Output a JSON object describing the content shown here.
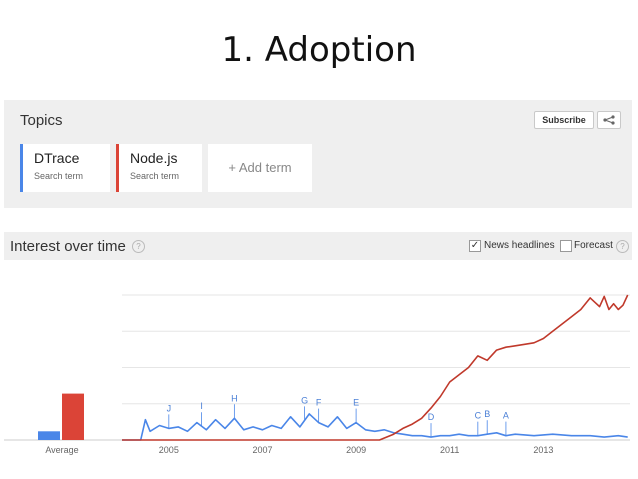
{
  "slide": {
    "title": "1. Adoption"
  },
  "topics": {
    "title": "Topics",
    "subscribe_label": "Subscribe",
    "share_icon": "share-icon",
    "terms": [
      {
        "name": "DTrace",
        "subtitle": "Search term",
        "color": "#4a86e8"
      },
      {
        "name": "Node.js",
        "subtitle": "Search term",
        "color": "#db4437"
      }
    ],
    "add_term_label": "+ Add term"
  },
  "interest": {
    "title": "Interest over time",
    "news_headlines_label": "News headlines",
    "news_headlines_checked": true,
    "forecast_label": "Forecast",
    "forecast_checked": false
  },
  "chart_data": {
    "type": "line",
    "average_label": "Average",
    "average": [
      {
        "name": "DTrace",
        "value": 6
      },
      {
        "name": "Node.js",
        "value": 32
      }
    ],
    "x_ticks": [
      "2005",
      "2007",
      "2009",
      "2011",
      "2013"
    ],
    "ylim": [
      0,
      100
    ],
    "grid": true,
    "series": [
      {
        "name": "DTrace",
        "color": "#4a86e8",
        "x": [
          2004.0,
          2004.4,
          2004.5,
          2004.6,
          2004.8,
          2005.0,
          2005.2,
          2005.4,
          2005.6,
          2005.8,
          2006.0,
          2006.2,
          2006.4,
          2006.6,
          2006.8,
          2007.0,
          2007.2,
          2007.4,
          2007.6,
          2007.8,
          2008.0,
          2008.2,
          2008.4,
          2008.6,
          2008.8,
          2009.0,
          2009.2,
          2009.4,
          2009.6,
          2009.8,
          2010.0,
          2010.2,
          2010.4,
          2010.6,
          2010.8,
          2011.0,
          2011.2,
          2011.4,
          2011.6,
          2011.8,
          2012.0,
          2012.2,
          2012.4,
          2012.8,
          2013.2,
          2013.6,
          2014.0,
          2014.3,
          2014.6,
          2014.8
        ],
        "values": [
          0,
          0,
          14,
          6,
          10,
          8,
          9,
          6,
          12,
          7,
          14,
          8,
          15,
          7,
          9,
          7,
          10,
          8,
          16,
          9,
          18,
          12,
          9,
          16,
          8,
          12,
          7,
          6,
          7,
          5,
          4,
          3,
          3,
          2,
          3,
          3,
          4,
          3,
          3,
          4,
          5,
          3,
          4,
          3,
          4,
          3,
          3,
          2,
          3,
          2
        ]
      },
      {
        "name": "Node.js",
        "color": "#c0392b",
        "x": [
          2004.0,
          2009.5,
          2009.8,
          2010.0,
          2010.2,
          2010.4,
          2010.6,
          2010.8,
          2011.0,
          2011.2,
          2011.4,
          2011.6,
          2011.8,
          2012.0,
          2012.2,
          2012.4,
          2012.6,
          2012.8,
          2013.0,
          2013.2,
          2013.4,
          2013.6,
          2013.8,
          2014.0,
          2014.1,
          2014.2,
          2014.3,
          2014.4,
          2014.5,
          2014.6,
          2014.7,
          2014.8
        ],
        "values": [
          0,
          0,
          4,
          8,
          11,
          15,
          22,
          30,
          40,
          45,
          50,
          58,
          55,
          62,
          64,
          65,
          66,
          67,
          70,
          75,
          80,
          85,
          90,
          98,
          95,
          92,
          99,
          90,
          94,
          90,
          93,
          100
        ]
      }
    ],
    "annotations": [
      {
        "label": "J",
        "x": 2005.0
      },
      {
        "label": "I",
        "x": 2005.7
      },
      {
        "label": "H",
        "x": 2006.4
      },
      {
        "label": "G",
        "x": 2007.9
      },
      {
        "label": "F",
        "x": 2008.2
      },
      {
        "label": "E",
        "x": 2009.0
      },
      {
        "label": "D",
        "x": 2010.6
      },
      {
        "label": "C",
        "x": 2011.6
      },
      {
        "label": "B",
        "x": 2011.8
      },
      {
        "label": "A",
        "x": 2012.2
      }
    ]
  }
}
